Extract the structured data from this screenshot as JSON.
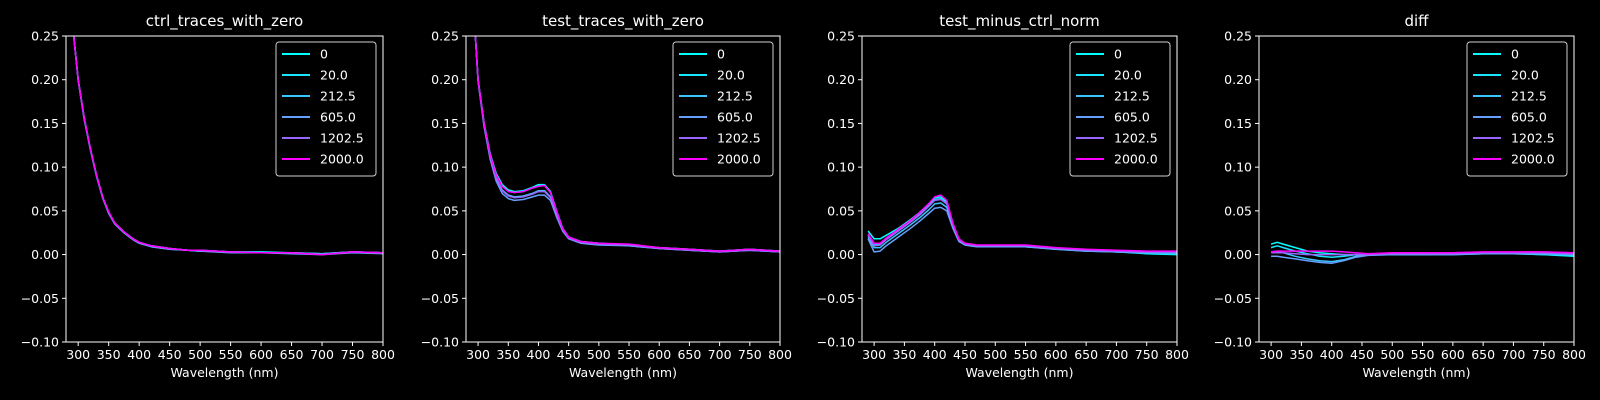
{
  "chart_data": [
    {
      "type": "line",
      "title": "ctrl_traces_with_zero",
      "xlabel": "Wavelength (nm)",
      "ylabel": "",
      "xlim": [
        280,
        800
      ],
      "ylim": [
        -0.1,
        0.25
      ],
      "xticks": [
        "300",
        "350",
        "400",
        "450",
        "500",
        "550",
        "600",
        "650",
        "700",
        "750",
        "800"
      ],
      "yticks": [
        "−0.10",
        "−0.05",
        "0.00",
        "0.05",
        "0.10",
        "0.15",
        "0.20",
        "0.25"
      ],
      "legend": "top-right",
      "grid": false,
      "x": [
        292,
        300,
        310,
        320,
        330,
        340,
        350,
        360,
        375,
        390,
        400,
        420,
        450,
        480,
        500,
        550,
        600,
        650,
        700,
        750,
        800
      ],
      "series": [
        {
          "name": "0",
          "color": "#00ffff",
          "values": [
            0.255,
            0.2,
            0.155,
            0.12,
            0.09,
            0.065,
            0.048,
            0.036,
            0.026,
            0.018,
            0.014,
            0.01,
            0.007,
            0.005,
            0.005,
            0.003,
            0.003,
            0.002,
            0.001,
            0.003,
            0.002
          ]
        },
        {
          "name": "20.0",
          "color": "#1ae5ff",
          "values": [
            0.255,
            0.2,
            0.156,
            0.121,
            0.091,
            0.066,
            0.048,
            0.036,
            0.026,
            0.018,
            0.014,
            0.01,
            0.007,
            0.005,
            0.004,
            0.003,
            0.002,
            0.002,
            0.001,
            0.003,
            0.002
          ]
        },
        {
          "name": "212.5",
          "color": "#3bc4ff",
          "values": [
            0.255,
            0.199,
            0.154,
            0.12,
            0.09,
            0.065,
            0.047,
            0.035,
            0.025,
            0.017,
            0.013,
            0.009,
            0.006,
            0.005,
            0.004,
            0.003,
            0.002,
            0.002,
            0.001,
            0.003,
            0.002
          ]
        },
        {
          "name": "605.0",
          "color": "#66a0ff",
          "values": [
            0.255,
            0.2,
            0.155,
            0.121,
            0.09,
            0.066,
            0.048,
            0.035,
            0.025,
            0.017,
            0.013,
            0.009,
            0.006,
            0.005,
            0.004,
            0.002,
            0.002,
            0.001,
            0.0,
            0.002,
            0.001
          ]
        },
        {
          "name": "1202.5",
          "color": "#9966ff",
          "values": [
            0.255,
            0.2,
            0.156,
            0.121,
            0.091,
            0.066,
            0.048,
            0.036,
            0.026,
            0.018,
            0.014,
            0.01,
            0.007,
            0.005,
            0.005,
            0.003,
            0.002,
            0.002,
            0.0,
            0.003,
            0.002
          ]
        },
        {
          "name": "2000.0",
          "color": "#ff00ff",
          "values": [
            0.255,
            0.2,
            0.156,
            0.121,
            0.091,
            0.066,
            0.049,
            0.036,
            0.026,
            0.018,
            0.014,
            0.01,
            0.007,
            0.005,
            0.005,
            0.003,
            0.002,
            0.002,
            0.0,
            0.003,
            0.002
          ]
        }
      ]
    },
    {
      "type": "line",
      "title": "test_traces_with_zero",
      "xlabel": "Wavelength (nm)",
      "ylabel": "",
      "xlim": [
        280,
        800
      ],
      "ylim": [
        -0.1,
        0.25
      ],
      "xticks": [
        "300",
        "350",
        "400",
        "450",
        "500",
        "550",
        "600",
        "650",
        "700",
        "750",
        "800"
      ],
      "yticks": [
        "−0.10",
        "−0.05",
        "0.00",
        "0.05",
        "0.10",
        "0.15",
        "0.20",
        "0.25"
      ],
      "legend": "top-right",
      "grid": false,
      "x": [
        295,
        300,
        310,
        320,
        330,
        340,
        350,
        360,
        375,
        390,
        400,
        410,
        420,
        430,
        440,
        450,
        470,
        500,
        550,
        600,
        650,
        700,
        750,
        800
      ],
      "series": [
        {
          "name": "0",
          "color": "#00ffff",
          "values": [
            0.255,
            0.2,
            0.15,
            0.115,
            0.093,
            0.08,
            0.074,
            0.072,
            0.073,
            0.077,
            0.08,
            0.08,
            0.072,
            0.05,
            0.03,
            0.02,
            0.015,
            0.013,
            0.011,
            0.008,
            0.006,
            0.004,
            0.006,
            0.004
          ]
        },
        {
          "name": "20.0",
          "color": "#1ae5ff",
          "values": [
            0.255,
            0.2,
            0.15,
            0.115,
            0.092,
            0.079,
            0.073,
            0.071,
            0.072,
            0.076,
            0.079,
            0.079,
            0.071,
            0.05,
            0.03,
            0.02,
            0.015,
            0.013,
            0.011,
            0.008,
            0.006,
            0.004,
            0.006,
            0.004
          ]
        },
        {
          "name": "212.5",
          "color": "#3bc4ff",
          "values": [
            0.255,
            0.199,
            0.148,
            0.112,
            0.088,
            0.074,
            0.068,
            0.066,
            0.067,
            0.07,
            0.073,
            0.073,
            0.066,
            0.046,
            0.028,
            0.019,
            0.014,
            0.012,
            0.01,
            0.007,
            0.005,
            0.003,
            0.005,
            0.003
          ]
        },
        {
          "name": "605.0",
          "color": "#66a0ff",
          "values": [
            0.255,
            0.198,
            0.146,
            0.109,
            0.084,
            0.07,
            0.064,
            0.062,
            0.063,
            0.066,
            0.068,
            0.068,
            0.062,
            0.043,
            0.027,
            0.018,
            0.013,
            0.011,
            0.01,
            0.007,
            0.005,
            0.003,
            0.005,
            0.003
          ]
        },
        {
          "name": "1202.5",
          "color": "#9966ff",
          "values": [
            0.255,
            0.199,
            0.148,
            0.111,
            0.087,
            0.073,
            0.067,
            0.065,
            0.066,
            0.069,
            0.072,
            0.072,
            0.065,
            0.046,
            0.028,
            0.019,
            0.014,
            0.012,
            0.011,
            0.007,
            0.005,
            0.003,
            0.005,
            0.003
          ]
        },
        {
          "name": "2000.0",
          "color": "#ff00ff",
          "values": [
            0.255,
            0.2,
            0.15,
            0.114,
            0.091,
            0.078,
            0.072,
            0.071,
            0.072,
            0.076,
            0.078,
            0.079,
            0.071,
            0.05,
            0.03,
            0.02,
            0.015,
            0.013,
            0.012,
            0.008,
            0.006,
            0.004,
            0.006,
            0.004
          ]
        }
      ]
    },
    {
      "type": "line",
      "title": "test_minus_ctrl_norm",
      "xlabel": "Wavelength (nm)",
      "ylabel": "",
      "xlim": [
        280,
        800
      ],
      "ylim": [
        -0.1,
        0.25
      ],
      "xticks": [
        "300",
        "350",
        "400",
        "450",
        "500",
        "550",
        "600",
        "650",
        "700",
        "750",
        "800"
      ],
      "yticks": [
        "−0.10",
        "−0.05",
        "0.00",
        "0.05",
        "0.10",
        "0.15",
        "0.20",
        "0.25"
      ],
      "legend": "top-right",
      "grid": false,
      "x": [
        290,
        300,
        310,
        320,
        340,
        360,
        375,
        390,
        400,
        410,
        420,
        430,
        440,
        450,
        470,
        500,
        550,
        600,
        650,
        700,
        750,
        800
      ],
      "series": [
        {
          "name": "0",
          "color": "#00ffff",
          "values": [
            0.027,
            0.018,
            0.018,
            0.022,
            0.03,
            0.04,
            0.048,
            0.058,
            0.065,
            0.066,
            0.06,
            0.035,
            0.018,
            0.012,
            0.01,
            0.01,
            0.01,
            0.007,
            0.005,
            0.003,
            0.001,
            0.0
          ]
        },
        {
          "name": "20.0",
          "color": "#1ae5ff",
          "values": [
            0.022,
            0.012,
            0.012,
            0.018,
            0.028,
            0.038,
            0.046,
            0.056,
            0.063,
            0.064,
            0.058,
            0.034,
            0.017,
            0.012,
            0.01,
            0.009,
            0.009,
            0.007,
            0.005,
            0.003,
            0.002,
            0.001
          ]
        },
        {
          "name": "212.5",
          "color": "#3bc4ff",
          "values": [
            0.02,
            0.008,
            0.008,
            0.014,
            0.024,
            0.034,
            0.042,
            0.051,
            0.058,
            0.059,
            0.054,
            0.032,
            0.016,
            0.011,
            0.009,
            0.009,
            0.009,
            0.006,
            0.004,
            0.003,
            0.002,
            0.001
          ]
        },
        {
          "name": "605.0",
          "color": "#66a0ff",
          "values": [
            0.018,
            0.003,
            0.004,
            0.01,
            0.02,
            0.03,
            0.038,
            0.047,
            0.053,
            0.054,
            0.05,
            0.03,
            0.015,
            0.011,
            0.009,
            0.009,
            0.009,
            0.006,
            0.004,
            0.003,
            0.002,
            0.002
          ]
        },
        {
          "name": "1202.5",
          "color": "#9966ff",
          "values": [
            0.022,
            0.01,
            0.011,
            0.017,
            0.027,
            0.037,
            0.045,
            0.055,
            0.062,
            0.063,
            0.058,
            0.034,
            0.017,
            0.012,
            0.01,
            0.01,
            0.01,
            0.007,
            0.005,
            0.004,
            0.003,
            0.003
          ]
        },
        {
          "name": "2000.0",
          "color": "#ff00ff",
          "values": [
            0.024,
            0.013,
            0.013,
            0.019,
            0.029,
            0.039,
            0.048,
            0.058,
            0.066,
            0.068,
            0.062,
            0.036,
            0.018,
            0.013,
            0.011,
            0.011,
            0.011,
            0.008,
            0.006,
            0.005,
            0.004,
            0.004
          ]
        }
      ]
    },
    {
      "type": "line",
      "title": "diff",
      "xlabel": "Wavelength (nm)",
      "ylabel": "",
      "xlim": [
        280,
        800
      ],
      "ylim": [
        -0.1,
        0.25
      ],
      "xticks": [
        "300",
        "350",
        "400",
        "450",
        "500",
        "550",
        "600",
        "650",
        "700",
        "750",
        "800"
      ],
      "yticks": [
        "−0.10",
        "−0.05",
        "0.00",
        "0.05",
        "0.10",
        "0.15",
        "0.20",
        "0.25"
      ],
      "legend": "top-right",
      "grid": false,
      "x": [
        300,
        310,
        320,
        340,
        360,
        380,
        400,
        420,
        440,
        460,
        500,
        550,
        600,
        650,
        700,
        750,
        800
      ],
      "series": [
        {
          "name": "0",
          "color": "#00ffff",
          "values": [
            0.012,
            0.014,
            0.012,
            0.008,
            0.004,
            0.002,
            0.001,
            0.0,
            0.0,
            0.0,
            0.0,
            0.0,
            0.001,
            0.001,
            0.001,
            0.0,
            -0.002
          ]
        },
        {
          "name": "20.0",
          "color": "#1ae5ff",
          "values": [
            0.008,
            0.01,
            0.008,
            0.004,
            0.001,
            -0.002,
            -0.003,
            -0.002,
            0.0,
            0.0,
            0.0,
            0.0,
            0.001,
            0.001,
            0.001,
            0.0,
            -0.001
          ]
        },
        {
          "name": "212.5",
          "color": "#3bc4ff",
          "values": [
            0.003,
            0.004,
            0.002,
            -0.002,
            -0.005,
            -0.007,
            -0.008,
            -0.006,
            -0.002,
            0.0,
            0.0,
            0.0,
            0.0,
            0.001,
            0.001,
            0.001,
            0.0
          ]
        },
        {
          "name": "605.0",
          "color": "#66a0ff",
          "values": [
            -0.002,
            -0.002,
            -0.003,
            -0.005,
            -0.007,
            -0.009,
            -0.01,
            -0.007,
            -0.003,
            -0.001,
            0.0,
            0.0,
            0.0,
            0.001,
            0.001,
            0.001,
            0.0
          ]
        },
        {
          "name": "1202.5",
          "color": "#9966ff",
          "values": [
            0.002,
            0.002,
            0.002,
            0.001,
            0.0,
            0.0,
            0.0,
            0.0,
            0.0,
            0.0,
            0.001,
            0.001,
            0.001,
            0.002,
            0.002,
            0.002,
            0.001
          ]
        },
        {
          "name": "2000.0",
          "color": "#ff00ff",
          "values": [
            0.003,
            0.004,
            0.004,
            0.004,
            0.004,
            0.004,
            0.004,
            0.003,
            0.002,
            0.001,
            0.002,
            0.002,
            0.002,
            0.003,
            0.003,
            0.003,
            0.002
          ]
        }
      ]
    }
  ]
}
